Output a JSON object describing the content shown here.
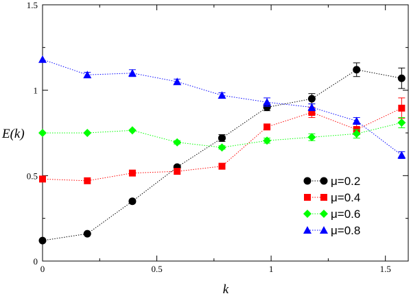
{
  "chart_data": {
    "type": "scatter",
    "xlabel": "k",
    "ylabel": "E(k)",
    "xlim": [
      0,
      1.6
    ],
    "ylim": [
      0,
      1.5
    ],
    "x_ticks": [
      0,
      0.5,
      1,
      1.5
    ],
    "y_ticks": [
      0,
      0.5,
      1,
      1.5
    ],
    "x_tick_labels": [
      "0",
      "0.5",
      "1",
      "1.5"
    ],
    "y_tick_labels": [
      "0",
      "0.5",
      "1",
      "1.5"
    ],
    "grid": false,
    "legend_position": "bottom-right",
    "series": [
      {
        "name": "μ=0.2",
        "marker": "circle",
        "color": "#000000",
        "x": [
          0,
          0.196,
          0.393,
          0.589,
          0.785,
          0.982,
          1.178,
          1.374,
          1.571
        ],
        "y": [
          0.12,
          0.16,
          0.35,
          0.55,
          0.72,
          0.9,
          0.95,
          1.12,
          1.07
        ],
        "err": [
          0.005,
          0.005,
          0.01,
          0.01,
          0.02,
          0.02,
          0.03,
          0.04,
          0.06
        ]
      },
      {
        "name": "μ=0.4",
        "marker": "square",
        "color": "#ff0000",
        "x": [
          0,
          0.196,
          0.393,
          0.589,
          0.785,
          0.982,
          1.178,
          1.374,
          1.571
        ],
        "y": [
          0.48,
          0.47,
          0.515,
          0.525,
          0.555,
          0.785,
          0.87,
          0.77,
          0.895
        ],
        "err": [
          0.005,
          0.005,
          0.005,
          0.005,
          0.005,
          0.01,
          0.03,
          0.03,
          0.06
        ]
      },
      {
        "name": "μ=0.6",
        "marker": "diamond",
        "color": "#00ff00",
        "x": [
          0,
          0.196,
          0.393,
          0.589,
          0.785,
          0.982,
          1.178,
          1.374,
          1.571
        ],
        "y": [
          0.75,
          0.75,
          0.765,
          0.695,
          0.665,
          0.705,
          0.725,
          0.745,
          0.81
        ],
        "err": [
          0.005,
          0.005,
          0.005,
          0.01,
          0.01,
          0.015,
          0.02,
          0.025,
          0.03
        ]
      },
      {
        "name": "μ=0.8",
        "marker": "triangle",
        "color": "#0000ff",
        "x": [
          0,
          0.196,
          0.393,
          0.589,
          0.785,
          0.982,
          1.178,
          1.374,
          1.571
        ],
        "y": [
          1.18,
          1.09,
          1.1,
          1.05,
          0.97,
          0.93,
          0.9,
          0.82,
          0.62
        ],
        "err": [
          0.005,
          0.015,
          0.02,
          0.015,
          0.015,
          0.025,
          0.02,
          0.02,
          0.02
        ]
      }
    ]
  }
}
